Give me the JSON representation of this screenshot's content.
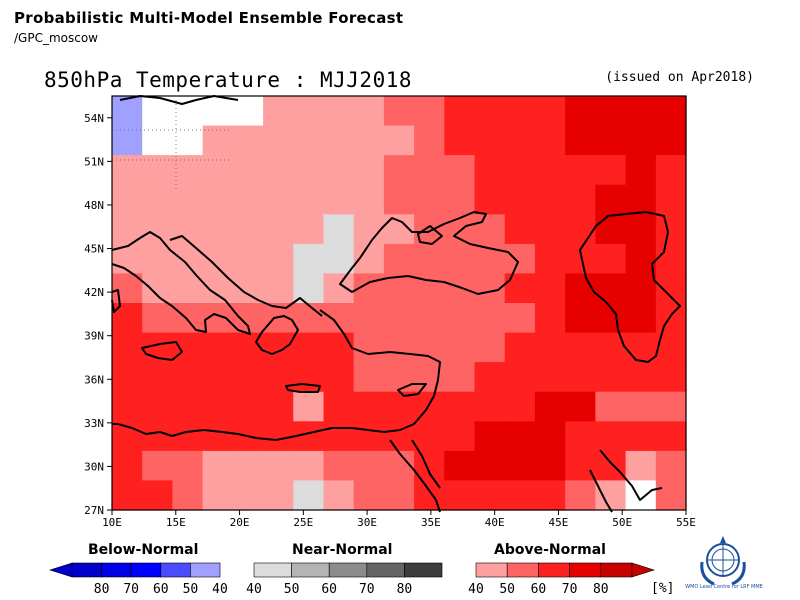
{
  "header": {
    "title": "Probabilistic Multi-Model Ensemble Forecast",
    "subtitle": "/GPC_moscow"
  },
  "map": {
    "title": "850hPa Temperature : MJJ2018",
    "issued": "(issued on Apr2018)",
    "lat_labels": [
      "54N",
      "51N",
      "48N",
      "45N",
      "42N",
      "39N",
      "36N",
      "33N",
      "30N",
      "27N"
    ],
    "lon_labels": [
      "10E",
      "15E",
      "20E",
      "25E",
      "30E",
      "35E",
      "40E",
      "45E",
      "50E",
      "55E"
    ],
    "extent": {
      "lon_min": 10,
      "lon_max": 55,
      "lat_min": 27,
      "lat_max": 55.5
    }
  },
  "legend": {
    "below": {
      "label": "Below-Normal",
      "ticks": [
        "80",
        "70",
        "60",
        "50",
        "40"
      ],
      "colors": [
        "#0000cc",
        "#0000e6",
        "#0000ff",
        "#4b4bff",
        "#a0a0ff"
      ]
    },
    "near": {
      "label": "Near-Normal",
      "ticks": [
        "40",
        "50",
        "60",
        "70",
        "80"
      ],
      "colors": [
        "#dcdcdc",
        "#b4b4b4",
        "#8c8c8c",
        "#646464",
        "#3c3c3c"
      ]
    },
    "above": {
      "label": "Above-Normal",
      "ticks": [
        "40",
        "50",
        "60",
        "70",
        "80"
      ],
      "colors": [
        "#ffa0a0",
        "#ff6464",
        "#ff2020",
        "#e60000",
        "#c80000"
      ]
    },
    "unit": "[%]"
  },
  "logo": {
    "name": "wmo-emblem",
    "text": "WMO Lead Centre for LRF MME"
  },
  "colors": {
    "C": "#dcdcdc",
    "A1": "#ffa0a0",
    "A2": "#ff6464",
    "A3": "#ff2020",
    "A4": "#e60000",
    "A5": "#c80000",
    "B1": "#a0a0ff",
    "W": "#ffffff"
  }
}
